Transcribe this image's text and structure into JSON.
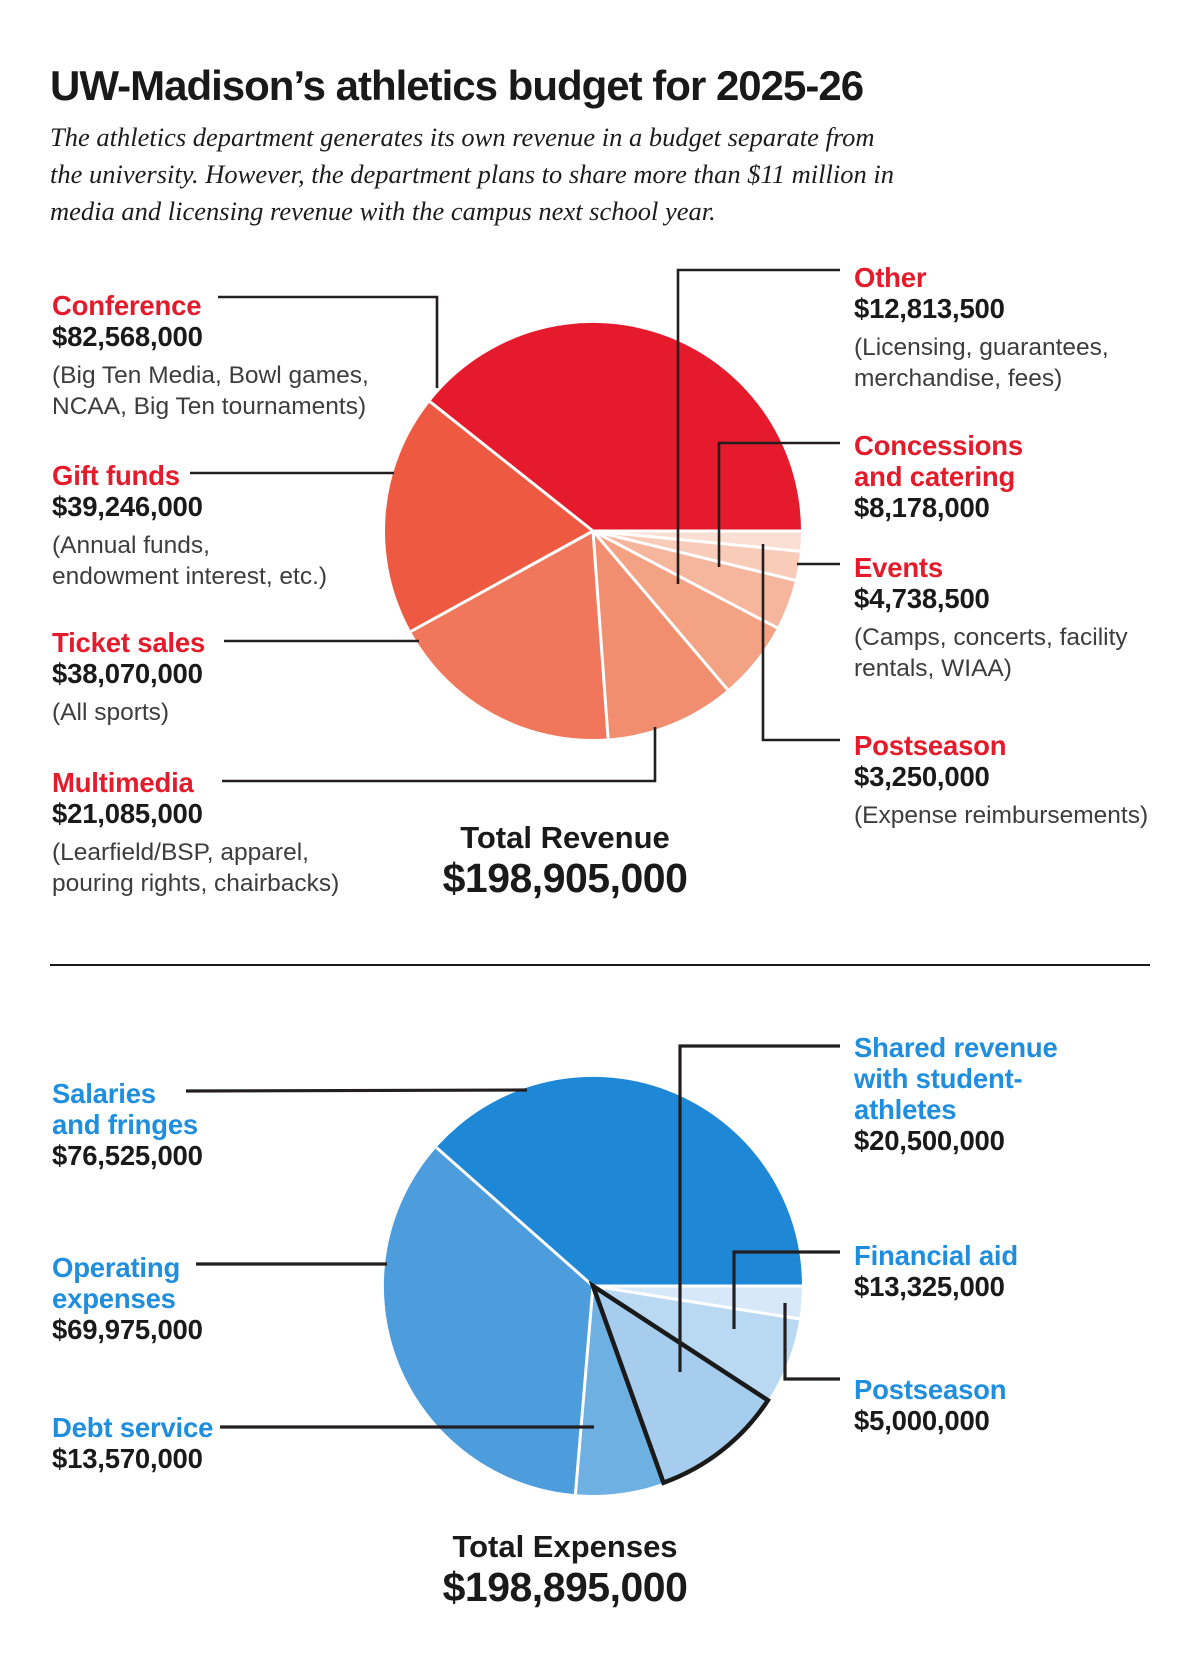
{
  "header": {
    "title": "UW-Madison’s athletics budget for 2025-26",
    "subtitle_lines": [
      "The athletics department generates its own revenue in a budget separate from",
      "the university. However, the department plans to share more than $11 million in",
      "media and licensing revenue with the campus next school year."
    ]
  },
  "colors": {
    "revenue_accent": "#e41b2b",
    "expense_accent": "#1f8ede",
    "leader_line": "#231f20",
    "value_text": "#1a1a1a",
    "note_text": "#3d3d3d",
    "outline_black": "#1a1a1a"
  },
  "chart_data": [
    {
      "type": "pie",
      "name": "revenue",
      "accent": "#e41b2b",
      "total_label": "Total Revenue",
      "total_value": "$198,905,000",
      "slices": [
        {
          "label": "Conference",
          "label_lines": [
            "Conference"
          ],
          "value": 82568000,
          "value_label": "$82,568,000",
          "note_lines": [
            "(Big Ten Media, Bowl games,",
            "NCAA, Big Ten tournaments)"
          ],
          "color": "#e51a2d"
        },
        {
          "label": "Gift funds",
          "label_lines": [
            "Gift funds"
          ],
          "value": 39246000,
          "value_label": "$39,246,000",
          "note_lines": [
            "(Annual funds,",
            "endowment interest, etc.)"
          ],
          "color": "#ee5a41"
        },
        {
          "label": "Ticket sales",
          "label_lines": [
            "Ticket sales"
          ],
          "value": 38070000,
          "value_label": "$38,070,000",
          "note_lines": [
            "(All sports)"
          ],
          "color": "#f0775b"
        },
        {
          "label": "Multimedia",
          "label_lines": [
            "Multimedia"
          ],
          "value": 21085000,
          "value_label": "$21,085,000",
          "note_lines": [
            "(Learfield/BSP, apparel,",
            "pouring rights, chairbacks)"
          ],
          "color": "#f28e70"
        },
        {
          "label": "Other",
          "label_lines": [
            "Other"
          ],
          "value": 12813500,
          "value_label": "$12,813,500",
          "note_lines": [
            "(Licensing, guarantees,",
            "merchandise, fees)"
          ],
          "color": "#f4a284"
        },
        {
          "label": "Concessions and catering",
          "label_lines": [
            "Concessions",
            "and catering"
          ],
          "value": 8178000,
          "value_label": "$8,178,000",
          "note_lines": [],
          "color": "#f6b69e"
        },
        {
          "label": "Events",
          "label_lines": [
            "Events"
          ],
          "value": 4738500,
          "value_label": "$4,738,500",
          "note_lines": [
            "(Camps, concerts, facility",
            "rentals, WIAA)"
          ],
          "color": "#f9ccba"
        },
        {
          "label": "Postseason",
          "label_lines": [
            "Postseason"
          ],
          "value": 3250000,
          "value_label": "$3,250,000",
          "note_lines": [
            "(Expense reimbursements)"
          ],
          "color": "#fbdfd4"
        }
      ]
    },
    {
      "type": "pie",
      "name": "expenses",
      "accent": "#1f8ede",
      "total_label": "Total Expenses",
      "total_value": "$198,895,000",
      "slices": [
        {
          "label": "Salaries and fringes",
          "label_lines": [
            "Salaries",
            "and fringes"
          ],
          "value": 76525000,
          "value_label": "$76,525,000",
          "note_lines": [],
          "color": "#1e87d6"
        },
        {
          "label": "Operating expenses",
          "label_lines": [
            "Operating",
            "expenses"
          ],
          "value": 69975000,
          "value_label": "$69,975,000",
          "note_lines": [],
          "color": "#4d9cdb"
        },
        {
          "label": "Debt service",
          "label_lines": [
            "Debt service"
          ],
          "value": 13570000,
          "value_label": "$13,570,000",
          "note_lines": [],
          "color": "#6fb0e3"
        },
        {
          "label": "Shared revenue with student-athletes",
          "label_lines": [
            "Shared revenue",
            "with student-",
            "athletes"
          ],
          "value": 20500000,
          "value_label": "$20,500,000",
          "note_lines": [],
          "color": "#a6cdee",
          "outlined": true
        },
        {
          "label": "Financial aid",
          "label_lines": [
            "Financial aid"
          ],
          "value": 13325000,
          "value_label": "$13,325,000",
          "note_lines": [],
          "color": "#b9d9f3"
        },
        {
          "label": "Postseason",
          "label_lines": [
            "Postseason"
          ],
          "value": 5000000,
          "value_label": "$5,000,000",
          "note_lines": [],
          "color": "#d7e9f8"
        }
      ]
    }
  ]
}
